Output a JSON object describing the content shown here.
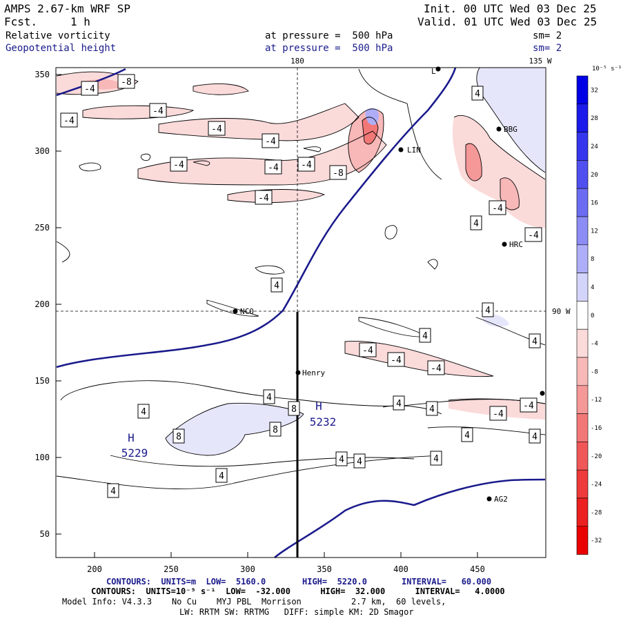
{
  "header": {
    "title": "AMPS 2.67-km WRF SP",
    "forecast_label": "Fcst.",
    "forecast_value": "1 h",
    "init": "Init. 00 UTC Wed 03 Dec 25",
    "valid": "Valid. 01 UTC Wed 03 Dec 25",
    "field1_name": "Relative vorticity",
    "field1_level": "at pressure =  500 hPa",
    "field1_smooth": "sm= 2",
    "field2_name": "Geopotential height",
    "field2_level": "at pressure =  500 hPa",
    "field2_smooth": "sm= 2"
  },
  "map": {
    "lon_label_top_1": "180",
    "lon_label_top_2": "135 W",
    "lat_label_right": "90 W",
    "x_ticks": [
      "200",
      "250",
      "300",
      "350",
      "400",
      "450"
    ],
    "y_ticks": [
      "350",
      "300",
      "250",
      "200",
      "150",
      "100",
      "50"
    ],
    "stations": [
      "NCO",
      "Henry",
      "HRC",
      "BBG",
      "AG2",
      "LIN",
      "L"
    ],
    "highs": [
      {
        "symbol": "H",
        "value": "5229"
      },
      {
        "symbol": "H",
        "value": "5232"
      }
    ],
    "contour_labels": [
      "-4",
      "-8",
      "4",
      "8"
    ]
  },
  "colorbar": {
    "units": "10⁻⁵ s⁻¹",
    "ticks": [
      "32",
      "28",
      "24",
      "20",
      "16",
      "12",
      "8",
      "4",
      "0",
      "-4",
      "-8",
      "-12",
      "-16",
      "-20",
      "-24",
      "-28",
      "-32"
    ],
    "colors": [
      "#0000e6",
      "#1a1aeb",
      "#3535ee",
      "#5050f0",
      "#6c6cf2",
      "#8c8cf5",
      "#aeaef8",
      "#d4d4fb",
      "#ffffff",
      "#fbdada",
      "#f8b8b8",
      "#f59898",
      "#f27878",
      "#f05858",
      "#ee3a3a",
      "#ec2020",
      "#ea0000"
    ]
  },
  "footer": {
    "line1_a": "CONTOURS:  UNITS=m  LOW=  5160.0",
    "line1_b": "HIGH=  5220.0",
    "line1_c": "INTERVAL=   60.000",
    "line2": "CONTOURS:  UNITS=10⁻⁵ s⁻¹  LOW=  -32.000      HIGH=  32.000      INTERVAL=   4.0000",
    "line3": "Model Info: V4.3.3    No Cu    MYJ PBL  Morrison          2.7 km,  60 levels,",
    "line4": "LW: RRTM SW: RRTMG   DIFF: simple KM: 2D Smagor"
  }
}
